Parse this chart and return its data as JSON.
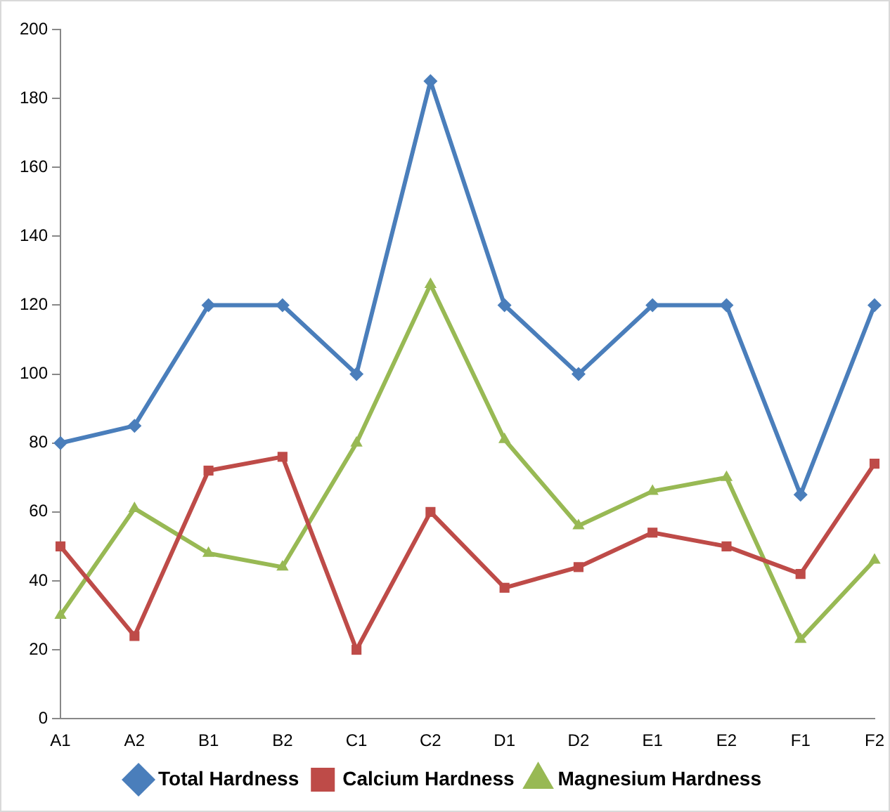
{
  "chart_data": {
    "type": "line",
    "categories": [
      "A1",
      "A2",
      "B1",
      "B2",
      "C1",
      "C2",
      "D1",
      "D2",
      "E1",
      "E2",
      "F1",
      "F2"
    ],
    "series": [
      {
        "name": "Total Hardness",
        "color": "#4a7ebb",
        "marker": "diamond",
        "values": [
          80,
          85,
          120,
          120,
          100,
          185,
          120,
          100,
          120,
          120,
          65,
          120
        ]
      },
      {
        "name": "Calcium Hardness",
        "color": "#be4b48",
        "marker": "square",
        "values": [
          50,
          24,
          72,
          76,
          20,
          60,
          38,
          44,
          54,
          50,
          42,
          74
        ]
      },
      {
        "name": "Magnesium Hardness",
        "color": "#98b954",
        "marker": "triangle",
        "values": [
          30,
          61,
          48,
          44,
          80,
          126,
          81,
          56,
          66,
          70,
          23,
          46
        ]
      }
    ],
    "ylim": [
      0,
      200
    ],
    "yticks": [
      0,
      20,
      40,
      60,
      80,
      100,
      120,
      140,
      160,
      180,
      200
    ],
    "grid": false,
    "legend": "bottom",
    "line_style": "solid"
  }
}
